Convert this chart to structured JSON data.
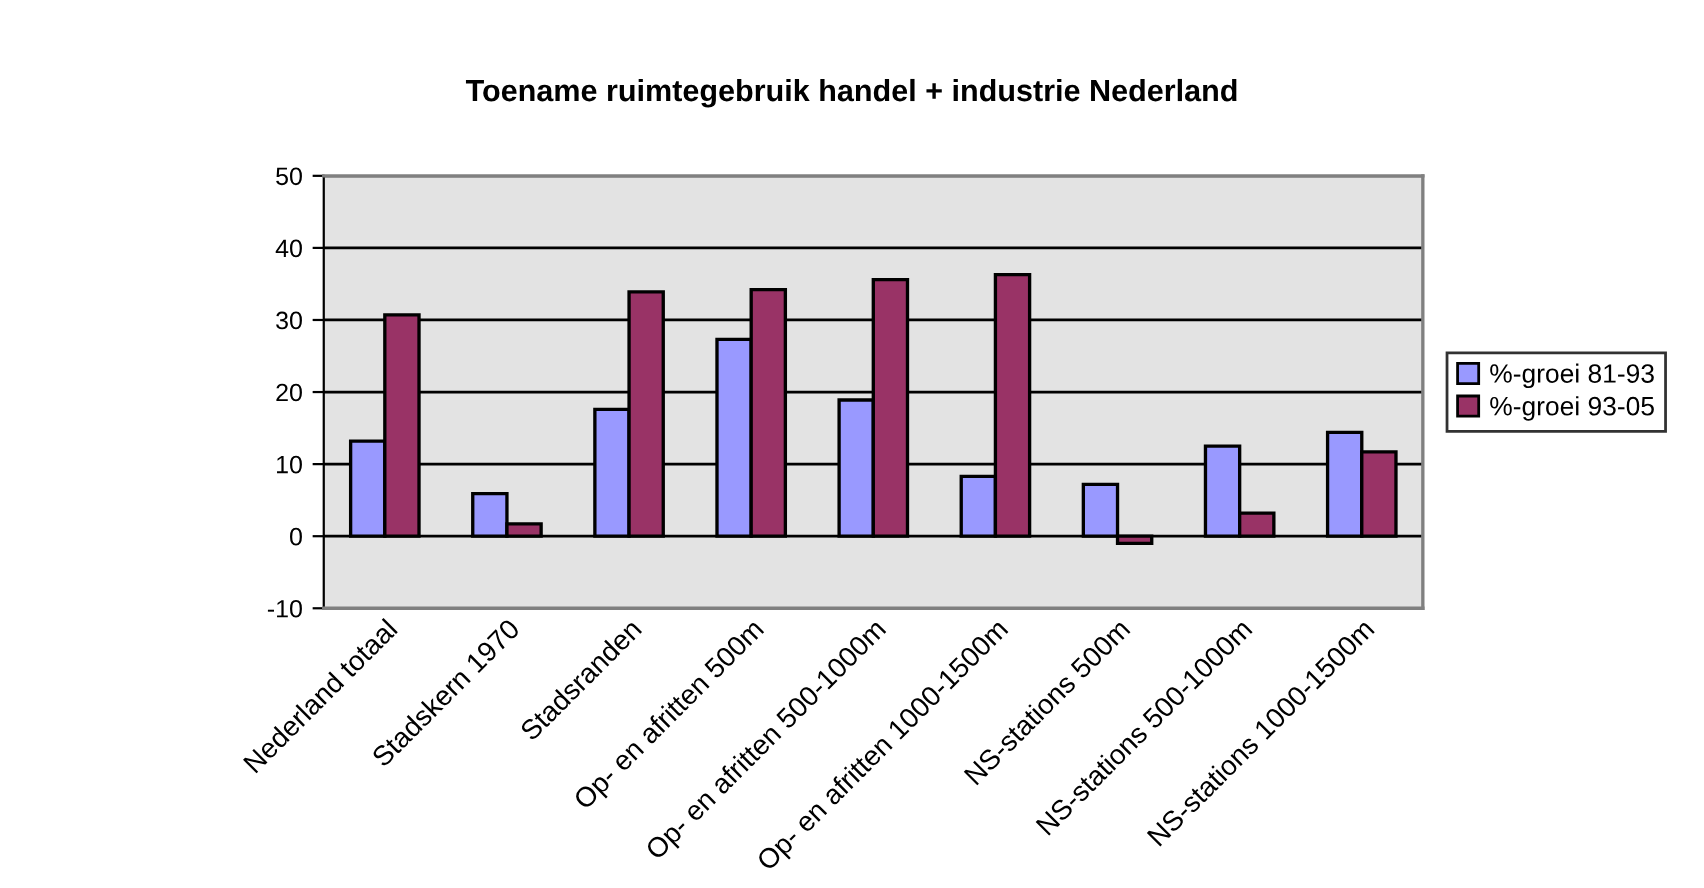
{
  "chart_data": {
    "type": "bar",
    "title": "Toename ruimtegebruik handel + industrie Nederland",
    "categories": [
      "Nederland totaal",
      "Stadskern 1970",
      "Stadsranden",
      "Op- en afritten 500m",
      "Op- en afritten 500-1000m",
      "Op- en afritten 1000-1500m",
      "NS-stations 500m",
      "NS-stations 500-1000m",
      "NS-stations 1000-1500m"
    ],
    "series": [
      {
        "name": "%-groei 81-93",
        "color": "#9999ff",
        "values": [
          13.2,
          5.9,
          17.6,
          27.3,
          18.9,
          8.3,
          7.2,
          12.5,
          14.4
        ]
      },
      {
        "name": "%-groei 93-05",
        "color": "#993366",
        "values": [
          30.7,
          1.7,
          33.9,
          34.2,
          35.6,
          36.3,
          -1.0,
          3.2,
          11.7
        ]
      }
    ],
    "ylim": [
      -10,
      50
    ],
    "yticks": [
      -10,
      0,
      10,
      20,
      30,
      40,
      50
    ],
    "grid": "y",
    "legend": "right"
  }
}
